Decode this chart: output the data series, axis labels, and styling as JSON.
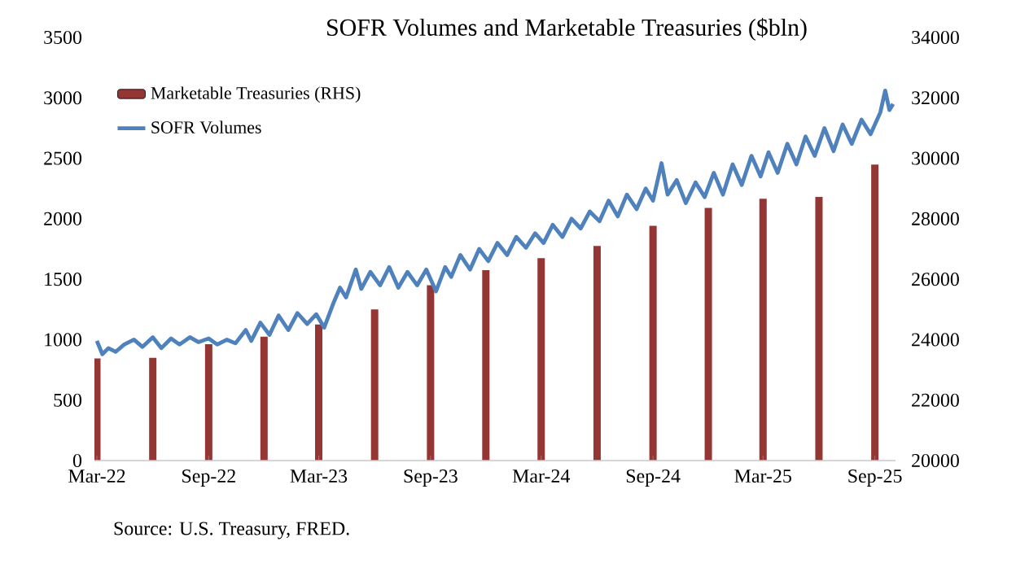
{
  "chart_data": {
    "type": "line",
    "title": "SOFR Volumes and Marketable Treasuries ($bln)",
    "annotations": [
      "Source: U.S. Treasury, FRED."
    ],
    "xlim": [
      "2022-02-25",
      "2025-10-05"
    ],
    "xticks": [
      {
        "value": "2022-03-01",
        "label": "Mar-22"
      },
      {
        "value": "2022-09-01",
        "label": "Sep-22"
      },
      {
        "value": "2023-03-01",
        "label": "Mar-23"
      },
      {
        "value": "2023-09-01",
        "label": "Sep-23"
      },
      {
        "value": "2024-03-01",
        "label": "Mar-24"
      },
      {
        "value": "2024-09-01",
        "label": "Sep-24"
      },
      {
        "value": "2025-03-01",
        "label": "Mar-25"
      },
      {
        "value": "2025-09-01",
        "label": "Sep-25"
      }
    ],
    "ylim": [
      0,
      3500
    ],
    "yticks": [
      0,
      500,
      1000,
      1500,
      2000,
      2500,
      3000,
      3500
    ],
    "y2lim": [
      20000,
      34000
    ],
    "y2ticks": [
      20000,
      22000,
      24000,
      26000,
      28000,
      30000,
      32000,
      34000
    ],
    "legend": "top left",
    "series": [
      {
        "name": "Marketable Treasuries (RHS)",
        "type": "bar",
        "axis": "y2",
        "color": "#943634",
        "x": [
          "2022-03-01",
          "2022-06-01",
          "2022-09-01",
          "2022-12-01",
          "2023-03-01",
          "2023-06-01",
          "2023-09-01",
          "2023-12-01",
          "2024-03-01",
          "2024-06-01",
          "2024-09-01",
          "2024-12-01",
          "2025-03-01",
          "2025-06-01",
          "2025-09-01"
        ],
        "values": [
          23380,
          23400,
          23850,
          24100,
          24500,
          25000,
          25800,
          26300,
          26700,
          27100,
          27770,
          28360,
          28660,
          28720,
          29790
        ]
      },
      {
        "name": "SOFR Volumes",
        "color": "#4f81bd",
        "x": [
          "2022-03-01",
          "2022-03-10",
          "2022-03-20",
          "2022-04-01",
          "2022-04-15",
          "2022-05-01",
          "2022-05-15",
          "2022-06-01",
          "2022-06-15",
          "2022-07-01",
          "2022-07-15",
          "2022-08-01",
          "2022-08-15",
          "2022-09-01",
          "2022-09-15",
          "2022-10-01",
          "2022-10-15",
          "2022-11-01",
          "2022-11-10",
          "2022-11-25",
          "2022-12-10",
          "2022-12-25",
          "2023-01-10",
          "2023-01-25",
          "2023-02-10",
          "2023-02-25",
          "2023-03-10",
          "2023-03-25",
          "2023-04-05",
          "2023-04-15",
          "2023-05-01",
          "2023-05-10",
          "2023-05-25",
          "2023-06-10",
          "2023-06-25",
          "2023-07-10",
          "2023-07-25",
          "2023-08-10",
          "2023-08-25",
          "2023-09-10",
          "2023-09-25",
          "2023-10-05",
          "2023-10-20",
          "2023-11-05",
          "2023-11-20",
          "2023-12-05",
          "2023-12-20",
          "2024-01-05",
          "2024-01-20",
          "2024-02-05",
          "2024-02-20",
          "2024-03-05",
          "2024-03-20",
          "2024-04-05",
          "2024-04-20",
          "2024-05-05",
          "2024-05-20",
          "2024-06-05",
          "2024-06-20",
          "2024-07-05",
          "2024-07-20",
          "2024-08-05",
          "2024-08-20",
          "2024-09-01",
          "2024-09-15",
          "2024-09-25",
          "2024-10-10",
          "2024-10-25",
          "2024-11-10",
          "2024-11-25",
          "2024-12-10",
          "2024-12-25",
          "2025-01-10",
          "2025-01-25",
          "2025-02-10",
          "2025-02-25",
          "2025-03-10",
          "2025-03-25",
          "2025-04-10",
          "2025-04-25",
          "2025-05-10",
          "2025-05-25",
          "2025-06-10",
          "2025-06-25",
          "2025-07-10",
          "2025-07-25",
          "2025-08-10",
          "2025-08-25",
          "2025-09-10",
          "2025-09-18",
          "2025-09-25",
          "2025-10-01"
        ],
        "values": [
          990,
          880,
          930,
          900,
          960,
          1000,
          940,
          1020,
          930,
          1010,
          960,
          1020,
          980,
          1010,
          960,
          1000,
          970,
          1080,
          990,
          1140,
          1040,
          1200,
          1080,
          1220,
          1130,
          1210,
          1100,
          1300,
          1430,
          1350,
          1580,
          1420,
          1560,
          1450,
          1600,
          1430,
          1560,
          1450,
          1580,
          1400,
          1600,
          1520,
          1700,
          1580,
          1750,
          1650,
          1800,
          1700,
          1850,
          1760,
          1880,
          1800,
          1950,
          1850,
          2000,
          1920,
          2060,
          1980,
          2150,
          2020,
          2200,
          2080,
          2250,
          2150,
          2460,
          2200,
          2320,
          2130,
          2300,
          2180,
          2380,
          2200,
          2450,
          2280,
          2520,
          2350,
          2550,
          2380,
          2620,
          2450,
          2680,
          2520,
          2750,
          2560,
          2780,
          2620,
          2820,
          2700,
          2880,
          3060,
          2900,
          2950
        ]
      }
    ]
  }
}
